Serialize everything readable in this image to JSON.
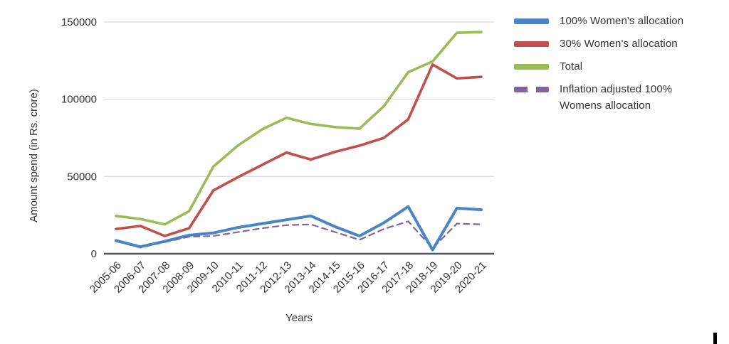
{
  "page": {
    "background": "#ffffff"
  },
  "chart_data": {
    "type": "line",
    "title": "",
    "xlabel": "Years",
    "ylabel": "Amount spend (in Rs. crore)",
    "ylim": [
      0,
      150000
    ],
    "yticks": [
      0,
      50000,
      100000,
      150000
    ],
    "grid": true,
    "legend_position": "right",
    "grid_color": "#d9d9d9",
    "axis_color": "#555555",
    "text_color": "#333333",
    "categories": [
      "2005-06",
      "2006-07",
      "2007-08",
      "2008-09",
      "2009-10",
      "2010-11",
      "2011-12",
      "2012-13",
      "2013-14",
      "2014-15",
      "2015-16",
      "2016-17",
      "2017-18",
      "2018-19",
      "2019-20",
      "2020-21"
    ],
    "series": [
      {
        "name": "100% Women's allocation",
        "color": "#4a84c4",
        "style": "solid",
        "values": [
          8500,
          4500,
          8000,
          12000,
          13500,
          17000,
          19500,
          22000,
          24500,
          17500,
          11500,
          20000,
          30500,
          2500,
          29500,
          28500
        ]
      },
      {
        "name": "30% Women's allocation",
        "color": "#c0504d",
        "style": "solid",
        "values": [
          16000,
          18000,
          11500,
          16500,
          41000,
          49500,
          57500,
          65500,
          61000,
          66000,
          70000,
          75000,
          87000,
          122500,
          113500,
          114500
        ]
      },
      {
        "name": "Total",
        "color": "#9bbb59",
        "style": "solid",
        "values": [
          24500,
          22500,
          19000,
          27500,
          56500,
          70000,
          80500,
          88000,
          84000,
          82000,
          81000,
          95500,
          117500,
          124500,
          143000,
          143500
        ]
      },
      {
        "name": "Inflation adjusted 100% Womens allocation",
        "color": "#8064a2",
        "style": "dashed",
        "values": [
          8000,
          4000,
          7500,
          11000,
          11500,
          14000,
          16500,
          18500,
          19000,
          14000,
          9000,
          16000,
          21000,
          3500,
          19500,
          19000
        ]
      }
    ]
  }
}
